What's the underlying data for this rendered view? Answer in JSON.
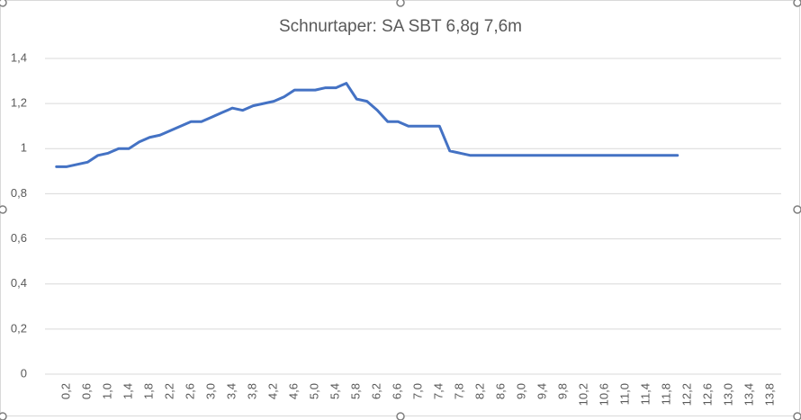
{
  "chart_data": {
    "type": "line",
    "title": "Schnurtaper:  SA SBT 6,8g 7,6m",
    "categories": [
      null,
      "0,2",
      null,
      "0,6",
      null,
      "1,0",
      null,
      "1,4",
      null,
      "1,8",
      null,
      "2,2",
      null,
      "2,6",
      null,
      "3,0",
      null,
      "3,4",
      null,
      "3,8",
      null,
      "4,2",
      null,
      "4,6",
      null,
      "5,0",
      null,
      "5,4",
      null,
      "5,8",
      null,
      "6,2",
      null,
      "6,6",
      null,
      "7,0",
      null,
      "7,4",
      null,
      "7,8",
      null,
      "8,2",
      null,
      "8,6",
      null,
      "9,0",
      null,
      "9,4",
      null,
      "9,8",
      null,
      "10,2",
      null,
      "10,6",
      null,
      "11,0",
      null,
      "11,4",
      null,
      "11,8",
      null,
      "12,2",
      null,
      "12,6",
      null,
      "13,0",
      null,
      "13,4",
      null,
      "13,8"
    ],
    "series": [
      {
        "color": "#4472c4",
        "values": [
          0.92,
          0.92,
          0.93,
          0.94,
          0.97,
          0.98,
          1.0,
          1.0,
          1.03,
          1.05,
          1.06,
          1.08,
          1.1,
          1.12,
          1.12,
          1.14,
          1.16,
          1.18,
          1.17,
          1.19,
          1.2,
          1.21,
          1.23,
          1.26,
          1.26,
          1.26,
          1.27,
          1.27,
          1.29,
          1.22,
          1.21,
          1.17,
          1.12,
          1.12,
          1.1,
          1.1,
          1.1,
          1.1,
          0.99,
          0.98,
          0.97,
          0.97,
          0.97,
          0.97,
          0.97,
          0.97,
          0.97,
          0.97,
          0.97,
          0.97,
          0.97,
          0.97,
          0.97,
          0.97,
          0.97,
          0.97,
          0.97,
          0.97,
          0.97,
          0.97,
          0.97,
          null,
          null,
          null,
          null,
          null,
          null,
          null,
          null,
          null
        ]
      }
    ],
    "ylim": [
      0,
      1.4
    ],
    "yticks": [
      0,
      {
        "value": 0.2,
        "label": "0,2"
      },
      {
        "value": 0.4,
        "label": "0,4"
      },
      {
        "value": 0.6,
        "label": "0,6"
      },
      {
        "value": 0.8,
        "label": "0,8"
      },
      1,
      {
        "value": 1.2,
        "label": "1,2"
      },
      {
        "value": 1.4,
        "label": "1,4"
      }
    ],
    "grid": true
  }
}
